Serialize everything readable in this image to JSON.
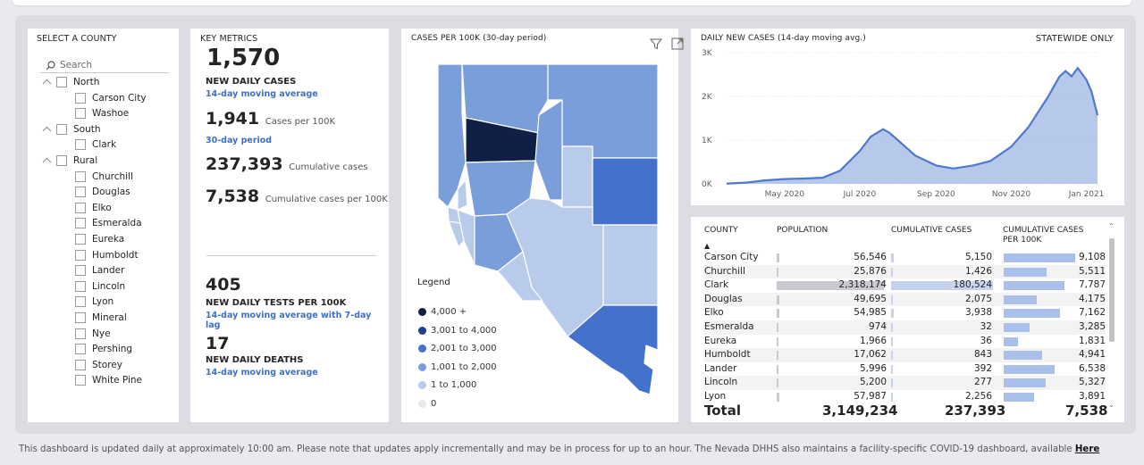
{
  "slicer": {
    "title": "SELECT A COUNTY",
    "search_placeholder": "Search",
    "groups": [
      {
        "label": "North",
        "items": [
          "Carson City",
          "Washoe"
        ]
      },
      {
        "label": "South",
        "items": [
          "Clark"
        ]
      },
      {
        "label": "Rural",
        "items": [
          "Churchill",
          "Douglas",
          "Elko",
          "Esmeralda",
          "Eureka",
          "Humboldt",
          "Lander",
          "Lincoln",
          "Lyon",
          "Mineral",
          "Nye",
          "Pershing",
          "Storey",
          "White Pine"
        ]
      }
    ]
  },
  "metrics": {
    "title": "KEY METRICS",
    "daily_cases": "1,570",
    "daily_cases_label": "NEW DAILY CASES",
    "daily_cases_sub": "14-day moving average",
    "per100k": "1,941",
    "per100k_label": "Cases per 100K",
    "per100k_sub": "30-day period",
    "cumulative": "237,393",
    "cumulative_label": "Cumulative cases",
    "cumulative100k": "7,538",
    "cumulative100k_label": "Cumulative cases per 100K",
    "tests": "405",
    "tests_label": "NEW DAILY TESTS PER 100K",
    "tests_sub": "14-day moving average with 7-day lag",
    "deaths": "17",
    "deaths_label": "NEW DAILY DEATHS",
    "deaths_sub": "14-day moving average"
  },
  "map": {
    "title": "CASES PER 100K (30-day period)",
    "legend_title": "Legend",
    "legend": [
      {
        "label": "4,000 +",
        "color": "#0f1f45"
      },
      {
        "label": "3,001 to 4,000",
        "color": "#1f3f8c"
      },
      {
        "label": "2,001 to 3,000",
        "color": "#4371cb"
      },
      {
        "label": "1,001 to 2,000",
        "color": "#7a9ed9"
      },
      {
        "label": "1 to 1,000",
        "color": "#b8cbea"
      },
      {
        "label": "0",
        "color": "#e8e8ea"
      }
    ]
  },
  "line_chart": {
    "title": "DAILY NEW CASES (14-day moving avg.)",
    "badge": "STATEWIDE ONLY"
  },
  "chart_data": {
    "type": "area",
    "title": "DAILY NEW CASES (14-day moving avg.)",
    "x_ticks": [
      "May 2020",
      "Jul 2020",
      "Sep 2020",
      "Nov 2020",
      "Jan 2021"
    ],
    "y_ticks": [
      "0K",
      "1K",
      "2K",
      "3K"
    ],
    "ylim": [
      0,
      3000
    ],
    "x": [
      "2020-03-15",
      "2020-04-01",
      "2020-04-15",
      "2020-05-01",
      "2020-05-15",
      "2020-06-01",
      "2020-06-15",
      "2020-07-01",
      "2020-07-10",
      "2020-07-20",
      "2020-07-25",
      "2020-08-01",
      "2020-08-15",
      "2020-09-01",
      "2020-09-15",
      "2020-10-01",
      "2020-10-15",
      "2020-11-01",
      "2020-11-15",
      "2020-12-01",
      "2020-12-10",
      "2020-12-15",
      "2020-12-20",
      "2020-12-25",
      "2021-01-01",
      "2021-01-05",
      "2021-01-10"
    ],
    "series": [
      {
        "values": [
          5,
          30,
          80,
          110,
          120,
          140,
          300,
          750,
          1080,
          1250,
          1170,
          1000,
          650,
          420,
          350,
          420,
          520,
          850,
          1300,
          2000,
          2450,
          2580,
          2460,
          2650,
          2380,
          2120,
          1570
        ]
      }
    ],
    "grid": true,
    "color": "#4f78cf",
    "fill": "#b3c6ea"
  },
  "table": {
    "headers": [
      "COUNTY",
      "POPULATION",
      "CUMULATIVE CASES",
      "CUMULATIVE CASES PER 100K"
    ],
    "rows": [
      {
        "county": "Carson City",
        "population": "56,546",
        "cases": "5,150",
        "per100k": "9,108",
        "pop_n": 56546,
        "cases_n": 5150,
        "per_n": 9108
      },
      {
        "county": "Churchill",
        "population": "25,876",
        "cases": "1,426",
        "per100k": "5,511",
        "pop_n": 25876,
        "cases_n": 1426,
        "per_n": 5511
      },
      {
        "county": "Clark",
        "population": "2,318,174",
        "cases": "180,524",
        "per100k": "7,787",
        "pop_n": 2318174,
        "cases_n": 180524,
        "per_n": 7787
      },
      {
        "county": "Douglas",
        "population": "49,695",
        "cases": "2,075",
        "per100k": "4,175",
        "pop_n": 49695,
        "cases_n": 2075,
        "per_n": 4175
      },
      {
        "county": "Elko",
        "population": "54,985",
        "cases": "3,938",
        "per100k": "7,162",
        "pop_n": 54985,
        "cases_n": 3938,
        "per_n": 7162
      },
      {
        "county": "Esmeralda",
        "population": "974",
        "cases": "32",
        "per100k": "3,285",
        "pop_n": 974,
        "cases_n": 32,
        "per_n": 3285
      },
      {
        "county": "Eureka",
        "population": "1,966",
        "cases": "36",
        "per100k": "1,831",
        "pop_n": 1966,
        "cases_n": 36,
        "per_n": 1831
      },
      {
        "county": "Humboldt",
        "population": "17,062",
        "cases": "843",
        "per100k": "4,941",
        "pop_n": 17062,
        "cases_n": 843,
        "per_n": 4941
      },
      {
        "county": "Lander",
        "population": "5,996",
        "cases": "392",
        "per100k": "6,538",
        "pop_n": 5996,
        "cases_n": 392,
        "per_n": 6538
      },
      {
        "county": "Lincoln",
        "population": "5,200",
        "cases": "277",
        "per100k": "5,327",
        "pop_n": 5200,
        "cases_n": 277,
        "per_n": 5327
      },
      {
        "county": "Lyon",
        "population": "57,987",
        "cases": "2,256",
        "per100k": "3,891",
        "pop_n": 57987,
        "cases_n": 2256,
        "per_n": 3891
      }
    ],
    "total_label": "Total",
    "total_population": "3,149,234",
    "total_cases": "237,393",
    "total_per100k": "7,538"
  },
  "footer": {
    "text": "This dashboard is updated daily at approximately 10:00 am. Please note that updates apply incrementally and may be in process for up to an hour.  The Nevada DHHS also maintains a facility-specific COVID-19 dashboard, available",
    "link": "Here"
  }
}
